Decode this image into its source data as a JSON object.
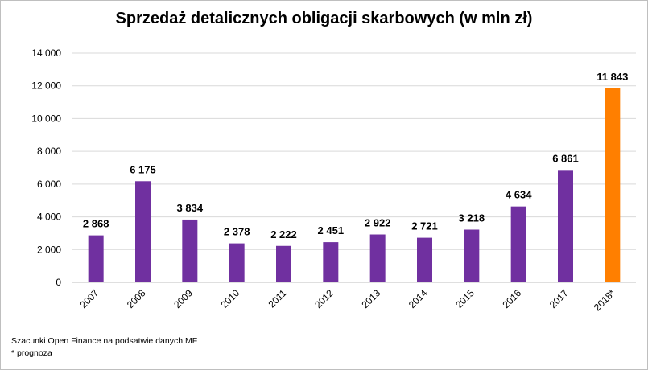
{
  "chart_data": {
    "type": "bar",
    "title": "Sprzedaż detalicznych obligacji skarbowych (w mln zł)",
    "categories": [
      "2007",
      "2008",
      "2009",
      "2010",
      "2011",
      "2012",
      "2013",
      "2014",
      "2015",
      "2016",
      "2017",
      "2018*"
    ],
    "values": [
      2868,
      6175,
      3834,
      2378,
      2222,
      2451,
      2922,
      2721,
      3218,
      4634,
      6861,
      11843
    ],
    "value_labels": [
      "2 868",
      "6 175",
      "3 834",
      "2 378",
      "2 222",
      "2 451",
      "2 922",
      "2 721",
      "3 218",
      "4 634",
      "6 861",
      "11 843"
    ],
    "bar_colors": [
      "#7030a0",
      "#7030a0",
      "#7030a0",
      "#7030a0",
      "#7030a0",
      "#7030a0",
      "#7030a0",
      "#7030a0",
      "#7030a0",
      "#7030a0",
      "#7030a0",
      "#ff7f00"
    ],
    "ylim": [
      0,
      14000
    ],
    "yticks": [
      0,
      2000,
      4000,
      6000,
      8000,
      10000,
      12000,
      14000
    ],
    "ytick_labels": [
      "0",
      "2 000",
      "4 000",
      "6 000",
      "8 000",
      "10 000",
      "12 000",
      "14 000"
    ],
    "grid": true,
    "legend": "none"
  },
  "footnotes": {
    "source": "Szacunki Open Finance na podsatwie danych MF",
    "note": "* prognoza"
  }
}
